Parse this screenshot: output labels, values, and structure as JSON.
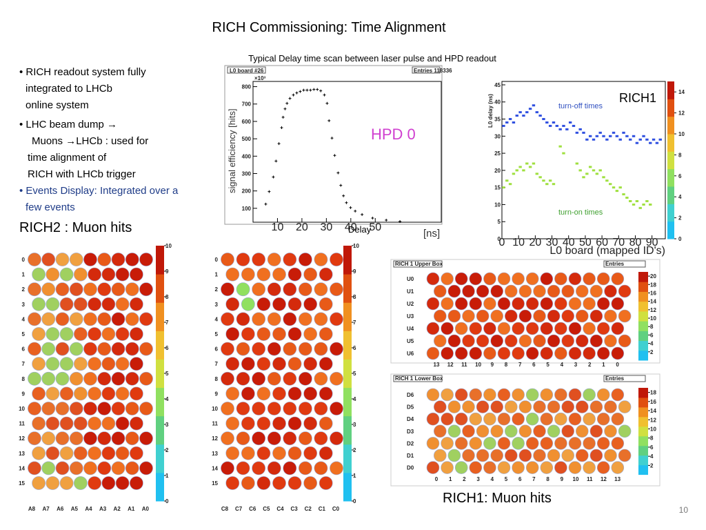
{
  "title": "RICH  Commissioning:  Time Alignment",
  "bullets": [
    [
      "• RICH readout system fully",
      "integrated to LHCb",
      "online system"
    ],
    [
      "• LHC beam dump →",
      "Muons →LHCb : used for",
      "time alignment of",
      "RICH with LHCb trigger"
    ],
    [
      "•  Events Display: Integrated over a",
      "few events"
    ]
  ],
  "rich2_label": "RICH2 :   Muon hits",
  "rich1_label": "RICH1: Muon hits",
  "page_number": "10",
  "delay_scan": {
    "type": "scatter",
    "caption": "Typical Delay time scan between laser pulse and HPD readout",
    "header_left": "L0 board #26",
    "header_right": "Entries  118336",
    "y_label": "signal efficiency [hits]",
    "exponent": "×10³",
    "legend": "HPD 0",
    "x_unit": "[ns]",
    "x_label": "Delay",
    "color": "#000000",
    "x": [
      5.2,
      6.6,
      8.3,
      9.4,
      10.6,
      11.7,
      12.3,
      13.1,
      13.9,
      15.1,
      16.5,
      17.9,
      19.3,
      20.7,
      22.1,
      23.5,
      24.9,
      26.3,
      27.7,
      29.2,
      30.3,
      31.1,
      32.3,
      33.4,
      34.8,
      35.9,
      37.0,
      38.2,
      39.9,
      41.8,
      44.6,
      48.9,
      54.5,
      60.1
    ],
    "values": [
      124,
      196,
      280,
      372,
      472,
      564,
      624,
      672,
      704,
      732,
      752,
      764,
      772,
      780,
      780,
      780,
      784,
      784,
      776,
      752,
      704,
      604,
      504,
      404,
      304,
      232,
      172,
      132,
      104,
      84,
      64,
      44,
      32,
      24
    ],
    "xlim": [
      0,
      77
    ],
    "ylim": [
      20,
      830
    ],
    "xticks": [
      10,
      20,
      30,
      40,
      50
    ],
    "yticks": [
      100,
      200,
      300,
      400,
      500,
      600,
      700,
      800
    ]
  },
  "rich1_delay": {
    "type": "scatter",
    "label": "RICH1",
    "y_label": "L0 delay (ns)",
    "x_label": "L0 board (mapped ID's)",
    "series": [
      {
        "name": "turn-off times",
        "color": "#3050e0",
        "x": [
          1,
          3,
          5,
          7,
          9,
          11,
          13,
          15,
          17,
          19,
          21,
          23,
          25,
          27,
          29,
          31,
          33,
          35,
          37,
          39,
          41,
          43,
          45,
          47,
          49,
          51,
          53,
          55,
          57,
          59,
          61,
          63,
          65,
          67,
          69,
          71,
          73,
          75,
          77,
          79,
          81,
          83,
          85,
          87,
          89,
          91,
          93,
          95
        ],
        "values": [
          33,
          34,
          35,
          34,
          36,
          37,
          36,
          37,
          38,
          39,
          37,
          36,
          35,
          34,
          33,
          34,
          33,
          32,
          33,
          32,
          34,
          33,
          31,
          32,
          31,
          29,
          30,
          29,
          30,
          31,
          30,
          29,
          30,
          31,
          30,
          29,
          31,
          30,
          29,
          30,
          28,
          29,
          30,
          29,
          28,
          29,
          28,
          29
        ]
      },
      {
        "name": "turn-on times",
        "color": "#a0e040",
        "x": [
          1,
          3,
          5,
          7,
          9,
          11,
          13,
          15,
          17,
          19,
          21,
          23,
          25,
          27,
          29,
          31,
          35,
          37,
          45,
          47,
          49,
          51,
          53,
          55,
          57,
          59,
          61,
          63,
          65,
          67,
          69,
          71,
          73,
          75,
          77,
          79,
          81,
          83,
          85,
          87,
          89
        ],
        "values": [
          15,
          17,
          16,
          19,
          20,
          21,
          20,
          22,
          21,
          22,
          19,
          18,
          17,
          16,
          17,
          16,
          27,
          25,
          22,
          20,
          18,
          19,
          21,
          20,
          19,
          20,
          18,
          17,
          16,
          15,
          14,
          15,
          13,
          12,
          11,
          10,
          11,
          9,
          10,
          11,
          10
        ]
      }
    ],
    "xlim": [
      0,
      98
    ],
    "ylim": [
      0,
      46
    ],
    "xticks": [
      0,
      10,
      20,
      30,
      40,
      50,
      60,
      70,
      80,
      90
    ],
    "yticks": [
      0,
      5,
      10,
      15,
      20,
      25,
      30,
      35,
      40,
      45
    ],
    "colorbar_lim": [
      0,
      15
    ],
    "colorbar_ticks": [
      0,
      2,
      4,
      6,
      8,
      10,
      12,
      14
    ]
  },
  "rich2_maps": [
    {
      "rows": [
        0,
        1,
        2,
        3,
        4,
        5,
        6,
        7,
        8,
        9,
        10,
        11,
        12,
        13,
        14,
        15
      ],
      "columns": [
        "A8",
        "A7",
        "A6",
        "A5",
        "A4",
        "A3",
        "A2",
        "A1",
        "A0"
      ],
      "colorbar_lim": [
        0,
        10
      ],
      "colorbar_ticks": [
        0,
        1,
        2,
        3,
        4,
        5,
        6,
        7,
        8,
        9,
        10
      ]
    },
    {
      "rows": [
        0,
        1,
        2,
        3,
        4,
        5,
        6,
        7,
        8,
        9,
        10,
        11,
        12,
        13,
        14,
        15
      ],
      "columns": [
        "C8",
        "C7",
        "C6",
        "C5",
        "C4",
        "C3",
        "C2",
        "C1",
        "C0"
      ],
      "colorbar_lim": [
        0,
        10
      ],
      "colorbar_ticks": [
        0,
        1,
        2,
        3,
        4,
        5,
        6,
        7,
        8,
        9,
        10
      ]
    }
  ],
  "rich1_maps": [
    {
      "header": "RICH 1 Upper Box",
      "entries": "Entries",
      "rows": [
        "U0",
        "U1",
        "U2",
        "U3",
        "U4",
        "U5",
        "U6"
      ],
      "columns": [
        13,
        12,
        11,
        10,
        9,
        8,
        7,
        6,
        5,
        4,
        3,
        2,
        1,
        0
      ],
      "colorbar_lim": [
        0,
        21
      ],
      "colorbar_ticks": [
        2,
        4,
        6,
        8,
        10,
        12,
        14,
        16,
        18,
        20
      ]
    },
    {
      "header": "RICH 1 Lower Box",
      "entries": "Entries",
      "rows": [
        "D6",
        "D5",
        "D4",
        "D3",
        "D2",
        "D1",
        "D0"
      ],
      "columns": [
        0,
        1,
        2,
        3,
        4,
        5,
        6,
        7,
        8,
        9,
        10,
        11,
        12,
        13
      ],
      "colorbar_lim": [
        0,
        19
      ],
      "colorbar_ticks": [
        2,
        4,
        6,
        8,
        10,
        12,
        14,
        16,
        18
      ]
    }
  ]
}
